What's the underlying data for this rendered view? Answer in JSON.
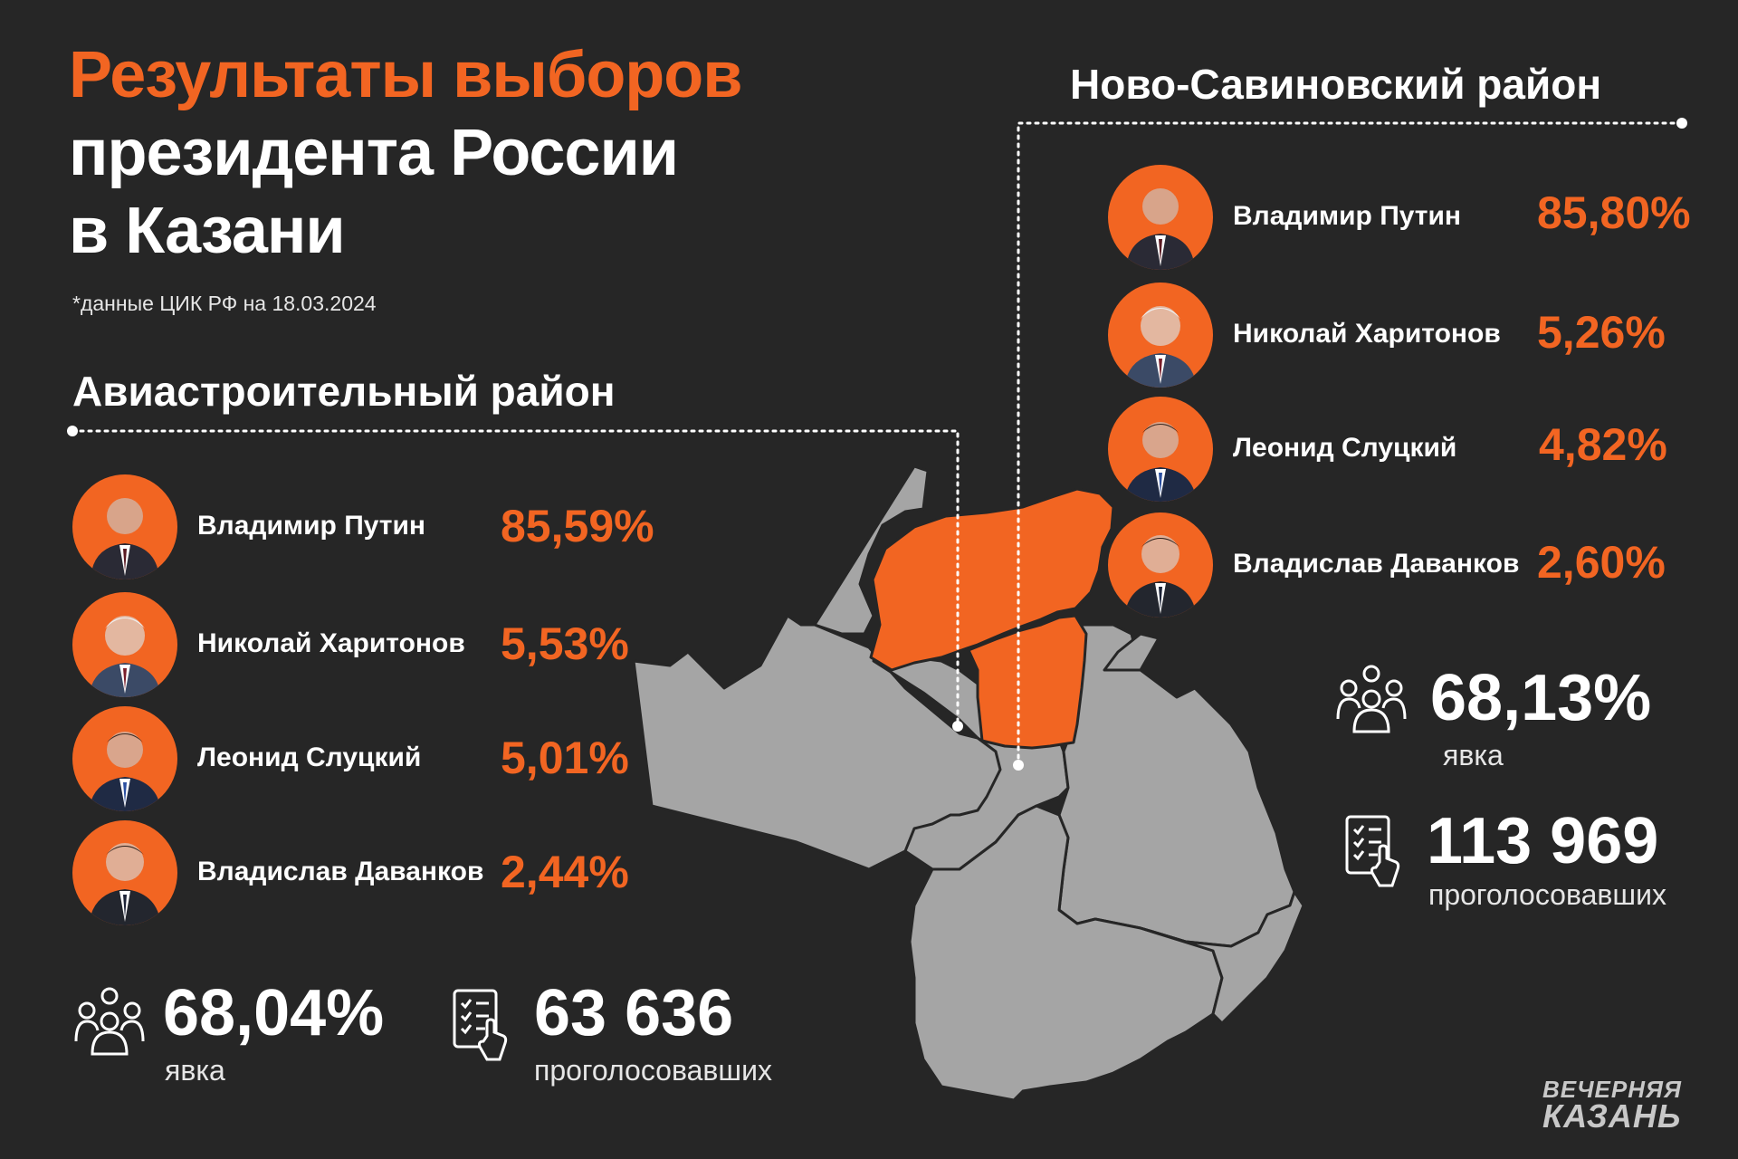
{
  "title": {
    "line1": "Результаты выборов",
    "line2": "президента России",
    "line3": "в Казани"
  },
  "note": "*данные ЦИК РФ на 18.03.2024",
  "colors": {
    "accent": "#f26522",
    "background": "#262626",
    "map_gray": "#a5a5a5"
  },
  "districts": [
    {
      "name": "Авиастроительный район",
      "candidates": [
        {
          "name": "Владимир Путин",
          "percent": "85,59%"
        },
        {
          "name": "Николай Харитонов",
          "percent": "5,53%"
        },
        {
          "name": "Леонид Слуцкий",
          "percent": "5,01%"
        },
        {
          "name": "Владислав Даванков",
          "percent": "2,44%"
        }
      ],
      "turnout": {
        "value": "68,04%",
        "label": "явка",
        "icon": "people-group-icon"
      },
      "voters": {
        "value": "63 636",
        "label": "проголосовавших",
        "icon": "ballot-list-icon"
      }
    },
    {
      "name": "Ново-Савиновский район",
      "candidates": [
        {
          "name": "Владимир Путин",
          "percent": "85,80%"
        },
        {
          "name": "Николай Харитонов",
          "percent": "5,26%"
        },
        {
          "name": "Леонид Слуцкий",
          "percent": "4,82%"
        },
        {
          "name": "Владислав Даванков",
          "percent": "2,60%"
        }
      ],
      "turnout": {
        "value": "68,13%",
        "label": "явка",
        "icon": "people-group-icon"
      },
      "voters": {
        "value": "113 969",
        "label": "проголосовавших",
        "icon": "ballot-list-icon"
      }
    }
  ],
  "logo": {
    "line1": "ВЕЧЕРНЯЯ",
    "line2": "КАЗАНЬ"
  }
}
